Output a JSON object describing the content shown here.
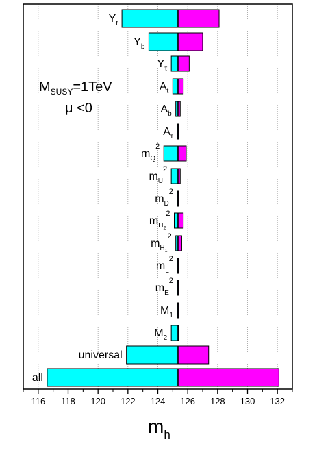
{
  "chart_data": {
    "type": "bar",
    "orientation": "horizontal",
    "center": 125.35,
    "xlim": [
      115,
      133
    ],
    "xticks": [
      116,
      118,
      120,
      122,
      124,
      126,
      128,
      130,
      132
    ],
    "xlabel": "m",
    "xlabel_sub": "h",
    "grid": "vertical-dotted",
    "annotation": {
      "line1_main": "M",
      "line1_sub": "SUSY",
      "line1_rest": "=1TeV",
      "line2": "μ <0"
    },
    "colors": {
      "low": "#00ffff",
      "high": "#ff00ff",
      "edge": "#000000"
    },
    "parameters": [
      {
        "id": "yt",
        "base": "Y",
        "sub": "t",
        "sup": "",
        "low": 121.6,
        "high": 128.1
      },
      {
        "id": "yb",
        "base": "Y",
        "sub": "b",
        "sup": "",
        "low": 123.4,
        "high": 127.0
      },
      {
        "id": "ytau",
        "base": "Y",
        "sub": "τ",
        "sup": "",
        "low": 124.9,
        "high": 126.1
      },
      {
        "id": "at",
        "base": "A",
        "sub": "t",
        "sup": "",
        "low": 125.0,
        "high": 125.7
      },
      {
        "id": "ab",
        "base": "A",
        "sub": "b",
        "sup": "",
        "low": 125.2,
        "high": 125.5
      },
      {
        "id": "atau",
        "base": "A",
        "sub": "τ",
        "sup": "",
        "low": 125.3,
        "high": 125.4
      },
      {
        "id": "mq2",
        "base": "m",
        "sub": "Q",
        "sup": "2",
        "low": 124.4,
        "high": 125.9
      },
      {
        "id": "mu2",
        "base": "m",
        "sub": "U",
        "sup": "2",
        "low": 124.9,
        "high": 125.5
      },
      {
        "id": "md2",
        "base": "m",
        "sub": "D",
        "sup": "2",
        "low": 125.3,
        "high": 125.4
      },
      {
        "id": "mh22",
        "base": "m",
        "sub": "H",
        "subsub": "2",
        "sup": "2",
        "low": 125.1,
        "high": 125.7
      },
      {
        "id": "mh12",
        "base": "m",
        "sub": "H",
        "subsub": "1",
        "sup": "2",
        "low": 125.2,
        "high": 125.6
      },
      {
        "id": "ml2",
        "base": "m",
        "sub": "L",
        "sup": "2",
        "low": 125.3,
        "high": 125.4
      },
      {
        "id": "me2",
        "base": "m",
        "sub": "E",
        "sup": "2",
        "low": 125.3,
        "high": 125.4
      },
      {
        "id": "m1",
        "base": "M",
        "sub": "1",
        "sup": "",
        "low": 125.3,
        "high": 125.4
      },
      {
        "id": "m2",
        "base": "M",
        "sub": "2",
        "sup": "",
        "low": 124.9,
        "high": 125.4
      },
      {
        "id": "universal",
        "base": "universal",
        "sub": "",
        "sup": "",
        "low": 121.9,
        "high": 127.4
      },
      {
        "id": "all",
        "base": "all",
        "sub": "",
        "sup": "",
        "low": 116.6,
        "high": 132.1
      }
    ]
  }
}
